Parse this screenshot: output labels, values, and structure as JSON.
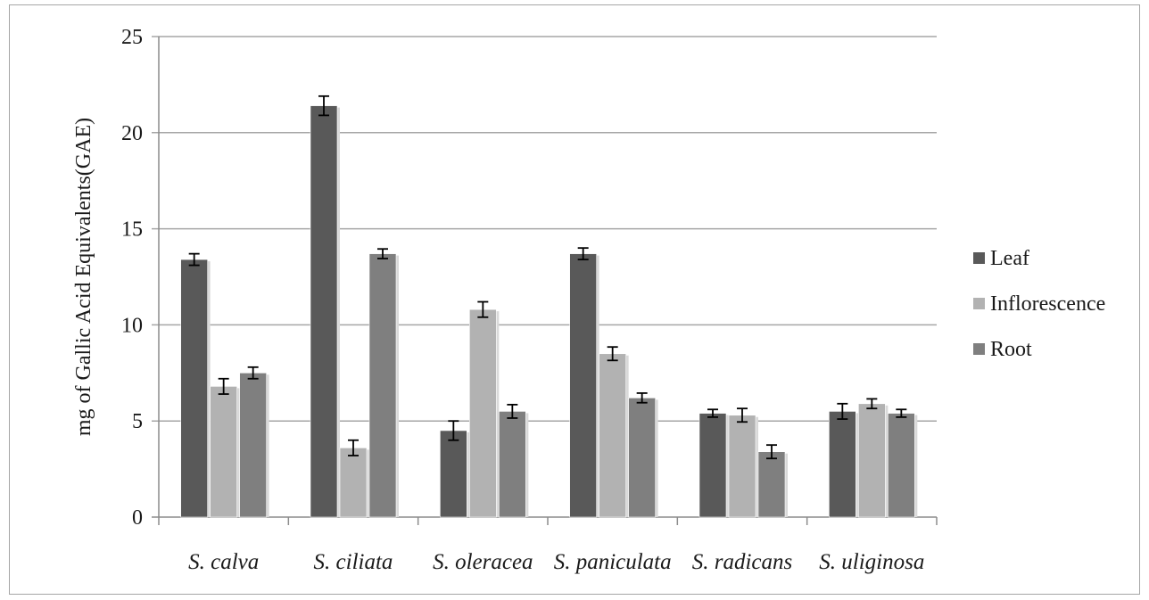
{
  "chart_data": {
    "type": "bar",
    "title": "",
    "xlabel": "",
    "ylabel": "mg of Gallic Acid Equivalents(GAE)",
    "ylim": [
      0,
      25
    ],
    "yticks": [
      "0",
      "5",
      "10",
      "15",
      "20",
      "25"
    ],
    "grid": "horizontal",
    "legend_position": "right",
    "categories": [
      "S. calva",
      "S. ciliata",
      "S. oleracea",
      "S. paniculata",
      "S. radicans",
      "S. uliginosa"
    ],
    "series": [
      {
        "name": "Leaf",
        "color": "#595959",
        "values": [
          13.4,
          21.4,
          4.5,
          13.7,
          5.4,
          5.5
        ],
        "errors": [
          0.3,
          0.5,
          0.5,
          0.3,
          0.2,
          0.4
        ]
      },
      {
        "name": "Inflorescence",
        "color": "#b2b2b2",
        "values": [
          6.8,
          3.6,
          10.8,
          8.5,
          5.3,
          5.9
        ],
        "errors": [
          0.4,
          0.4,
          0.4,
          0.35,
          0.35,
          0.25
        ]
      },
      {
        "name": "Root",
        "color": "#7f7f7f",
        "values": [
          7.5,
          13.7,
          5.5,
          6.2,
          3.4,
          5.4
        ],
        "errors": [
          0.3,
          0.25,
          0.35,
          0.25,
          0.35,
          0.2
        ]
      }
    ]
  }
}
